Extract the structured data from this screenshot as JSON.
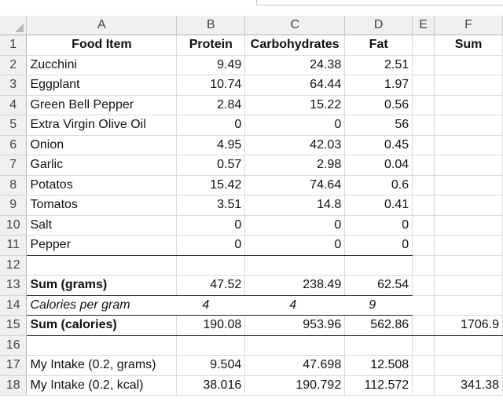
{
  "columns": [
    "A",
    "B",
    "C",
    "D",
    "E",
    "F"
  ],
  "rows": [
    {
      "n": "1",
      "a": "Food Item",
      "b": "Protein",
      "c": "Carbohydrates",
      "d": "Fat",
      "e": "",
      "f": "Sum"
    },
    {
      "n": "2",
      "a": "Zucchini",
      "b": "9.49",
      "c": "24.38",
      "d": "2.51",
      "e": "",
      "f": ""
    },
    {
      "n": "3",
      "a": "Eggplant",
      "b": "10.74",
      "c": "64.44",
      "d": "1.97",
      "e": "",
      "f": ""
    },
    {
      "n": "4",
      "a": "Green Bell Pepper",
      "b": "2.84",
      "c": "15.22",
      "d": "0.56",
      "e": "",
      "f": ""
    },
    {
      "n": "5",
      "a": "Extra Virgin Olive Oil",
      "b": "0",
      "c": "0",
      "d": "56",
      "e": "",
      "f": ""
    },
    {
      "n": "6",
      "a": "Onion",
      "b": "4.95",
      "c": "42.03",
      "d": "0.45",
      "e": "",
      "f": ""
    },
    {
      "n": "7",
      "a": "Garlic",
      "b": "0.57",
      "c": "2.98",
      "d": "0.04",
      "e": "",
      "f": ""
    },
    {
      "n": "8",
      "a": "Potatos",
      "b": "15.42",
      "c": "74.64",
      "d": "0.6",
      "e": "",
      "f": ""
    },
    {
      "n": "9",
      "a": "Tomatos",
      "b": "3.51",
      "c": "14.8",
      "d": "0.41",
      "e": "",
      "f": ""
    },
    {
      "n": "10",
      "a": "Salt",
      "b": "0",
      "c": "0",
      "d": "0",
      "e": "",
      "f": ""
    },
    {
      "n": "11",
      "a": "Pepper",
      "b": "0",
      "c": "0",
      "d": "0",
      "e": "",
      "f": ""
    },
    {
      "n": "12",
      "a": "",
      "b": "",
      "c": "",
      "d": "",
      "e": "",
      "f": ""
    },
    {
      "n": "13",
      "a": "Sum (grams)",
      "b": "47.52",
      "c": "238.49",
      "d": "62.54",
      "e": "",
      "f": ""
    },
    {
      "n": "14",
      "a": "Calories per gram",
      "b": "4",
      "c": "4",
      "d": "9",
      "e": "",
      "f": ""
    },
    {
      "n": "15",
      "a": "Sum (calories)",
      "b": "190.08",
      "c": "953.96",
      "d": "562.86",
      "e": "",
      "f": "1706.9"
    },
    {
      "n": "16",
      "a": "",
      "b": "",
      "c": "",
      "d": "",
      "e": "",
      "f": ""
    },
    {
      "n": "17",
      "a": "My Intake (0.2, grams)",
      "b": "9.504",
      "c": "47.698",
      "d": "12.508",
      "e": "",
      "f": ""
    },
    {
      "n": "18",
      "a": "My Intake (0.2, kcal)",
      "b": "38.016",
      "c": "190.792",
      "d": "112.572",
      "e": "",
      "f": "341.38"
    }
  ]
}
